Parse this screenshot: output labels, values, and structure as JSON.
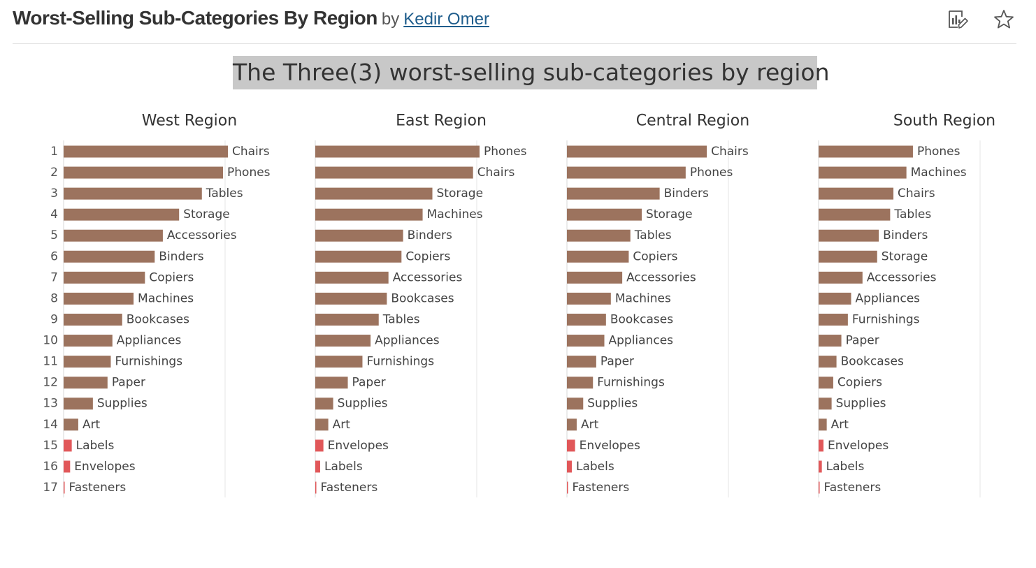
{
  "header": {
    "title": "Worst-Selling Sub-Categories By Region",
    "by": "by",
    "author": "Kedir Omer",
    "icons": [
      "edit-chart-icon",
      "favorite-star-icon"
    ]
  },
  "dashboard_title": "The Three(3) worst-selling sub-categories by region",
  "chart_data": {
    "type": "bar",
    "orientation": "horizontal",
    "ranks": [
      "1",
      "2",
      "3",
      "4",
      "5",
      "6",
      "7",
      "8",
      "9",
      "10",
      "11",
      "12",
      "13",
      "14",
      "15",
      "16",
      "17"
    ],
    "colors": {
      "default": "#9c735e",
      "highlight": "#e15759"
    },
    "highlight_rule": "bottom 3 per region",
    "panels": [
      {
        "title": "West Region",
        "categories": [
          "Chairs",
          "Phones",
          "Tables",
          "Storage",
          "Accessories",
          "Binders",
          "Copiers",
          "Machines",
          "Bookcases",
          "Appliances",
          "Furnishings",
          "Paper",
          "Supplies",
          "Art",
          "Labels",
          "Envelopes",
          "Fasteners"
        ],
        "values": [
          101,
          98,
          85,
          71,
          61,
          56,
          50,
          43,
          36,
          30,
          29,
          27,
          18,
          9,
          5,
          4,
          0.5
        ]
      },
      {
        "title": "East Region",
        "categories": [
          "Phones",
          "Chairs",
          "Storage",
          "Machines",
          "Binders",
          "Copiers",
          "Accessories",
          "Bookcases",
          "Tables",
          "Appliances",
          "Furnishings",
          "Paper",
          "Supplies",
          "Art",
          "Envelopes",
          "Labels",
          "Fasteners"
        ],
        "values": [
          101,
          97,
          72,
          66,
          54,
          53,
          45,
          44,
          39,
          34,
          29,
          20,
          11,
          8,
          5,
          3,
          0.5
        ]
      },
      {
        "title": "Central Region",
        "categories": [
          "Chairs",
          "Phones",
          "Binders",
          "Storage",
          "Tables",
          "Copiers",
          "Accessories",
          "Machines",
          "Bookcases",
          "Appliances",
          "Paper",
          "Furnishings",
          "Supplies",
          "Art",
          "Envelopes",
          "Labels",
          "Fasteners"
        ],
        "values": [
          86,
          73,
          57,
          46,
          39,
          38,
          34,
          27,
          24,
          23,
          18,
          16,
          10,
          6,
          5,
          3,
          0.5
        ]
      },
      {
        "title": "South Region",
        "categories": [
          "Phones",
          "Machines",
          "Chairs",
          "Tables",
          "Binders",
          "Storage",
          "Accessories",
          "Appliances",
          "Furnishings",
          "Paper",
          "Bookcases",
          "Copiers",
          "Supplies",
          "Art",
          "Envelopes",
          "Labels",
          "Fasteners"
        ],
        "values": [
          58,
          54,
          46,
          44,
          37,
          36,
          27,
          20,
          18,
          14,
          11,
          9,
          8,
          5,
          3,
          2,
          0.5
        ]
      }
    ]
  }
}
